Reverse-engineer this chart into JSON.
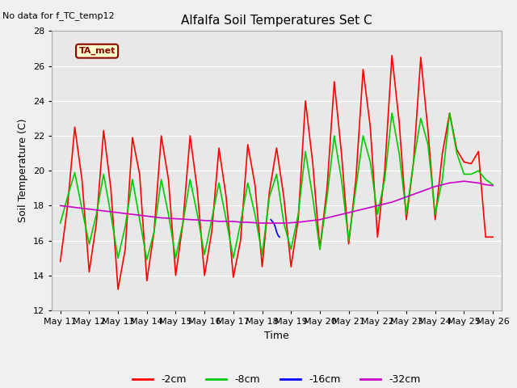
{
  "title": "Alfalfa Soil Temperatures Set C",
  "xlabel": "Time",
  "ylabel": "Soil Temperature (C)",
  "no_data_text": "No data for f_TC_temp12",
  "ta_met_label": "TA_met",
  "ylim": [
    12,
    28
  ],
  "yticks": [
    12,
    14,
    16,
    18,
    20,
    22,
    24,
    26,
    28
  ],
  "background_color": "#e8e8e8",
  "grid_color": "#ffffff",
  "series": {
    "neg2cm": {
      "label": "-2cm",
      "color": "#ff0000",
      "linewidth": 1.2
    },
    "neg8cm": {
      "label": "-8cm",
      "color": "#00cc00",
      "linewidth": 1.2
    },
    "neg16cm": {
      "label": "-16cm",
      "color": "#0000ff",
      "linewidth": 1.2
    },
    "neg32cm": {
      "label": "-32cm",
      "color": "#cc00cc",
      "linewidth": 1.2
    }
  },
  "x_tick_labels": [
    "May 11",
    "May 12",
    "May 13",
    "May 14",
    "May 15",
    "May 16",
    "May 17",
    "May 18",
    "May 19",
    "May 20",
    "May 21",
    "May 22",
    "May 23",
    "May 24",
    "May 25",
    "May 26"
  ],
  "x_tick_positions": [
    0,
    1,
    2,
    3,
    4,
    5,
    6,
    7,
    8,
    9,
    10,
    11,
    12,
    13,
    14,
    15
  ],
  "neg2cm_x": [
    0.0,
    0.25,
    0.5,
    0.75,
    1.0,
    1.25,
    1.5,
    1.75,
    2.0,
    2.25,
    2.5,
    2.75,
    3.0,
    3.25,
    3.5,
    3.75,
    4.0,
    4.25,
    4.5,
    4.75,
    5.0,
    5.25,
    5.5,
    5.75,
    6.0,
    6.25,
    6.5,
    6.75,
    7.0,
    7.25,
    7.5,
    7.75,
    8.0,
    8.25,
    8.5,
    8.75,
    9.0,
    9.25,
    9.5,
    9.75,
    10.0,
    10.25,
    10.5,
    10.75,
    11.0,
    11.25,
    11.5,
    11.75,
    12.0,
    12.25,
    12.5,
    12.75,
    13.0,
    13.25,
    13.5,
    13.75,
    14.0,
    14.25,
    14.5,
    14.75,
    15.0
  ],
  "neg2cm_y": [
    14.8,
    18.0,
    22.5,
    19.5,
    14.2,
    17.0,
    22.3,
    19.0,
    13.2,
    15.5,
    21.9,
    19.8,
    13.7,
    16.5,
    22.0,
    19.5,
    14.0,
    17.0,
    22.0,
    18.9,
    14.0,
    16.5,
    21.3,
    18.5,
    13.9,
    16.0,
    21.5,
    19.2,
    14.5,
    18.8,
    21.3,
    18.5,
    14.5,
    17.2,
    24.0,
    20.5,
    15.5,
    19.0,
    25.1,
    21.0,
    15.8,
    19.5,
    25.8,
    22.5,
    16.2,
    20.0,
    26.6,
    22.8,
    17.2,
    20.5,
    26.5,
    22.3,
    17.2,
    21.0,
    23.3,
    21.2,
    20.5,
    20.4,
    21.1,
    16.2,
    16.2
  ],
  "neg8cm_x": [
    0.0,
    0.25,
    0.5,
    0.75,
    1.0,
    1.25,
    1.5,
    1.75,
    2.0,
    2.25,
    2.5,
    2.75,
    3.0,
    3.25,
    3.5,
    3.75,
    4.0,
    4.25,
    4.5,
    4.75,
    5.0,
    5.25,
    5.5,
    5.75,
    6.0,
    6.25,
    6.5,
    6.75,
    7.0,
    7.25,
    7.5,
    7.75,
    8.0,
    8.25,
    8.5,
    8.75,
    9.0,
    9.25,
    9.5,
    9.75,
    10.0,
    10.25,
    10.5,
    10.75,
    11.0,
    11.25,
    11.5,
    11.75,
    12.0,
    12.25,
    12.5,
    12.75,
    13.0,
    13.25,
    13.5,
    13.75,
    14.0,
    14.25,
    14.5,
    14.75,
    15.0
  ],
  "neg8cm_y": [
    17.0,
    18.5,
    19.9,
    17.8,
    15.8,
    17.5,
    19.8,
    17.5,
    15.0,
    16.8,
    19.5,
    17.2,
    14.9,
    16.5,
    19.5,
    17.5,
    15.0,
    17.0,
    19.5,
    17.5,
    15.2,
    17.2,
    19.3,
    17.2,
    15.0,
    17.0,
    19.3,
    17.5,
    15.2,
    18.5,
    19.8,
    17.0,
    15.5,
    17.5,
    21.1,
    18.5,
    15.5,
    18.5,
    22.0,
    19.5,
    16.0,
    19.0,
    22.0,
    20.5,
    17.5,
    19.5,
    23.3,
    21.0,
    17.5,
    20.5,
    23.0,
    21.5,
    17.5,
    19.5,
    23.3,
    21.0,
    19.8,
    19.8,
    20.0,
    19.5,
    19.2
  ],
  "neg16cm_x": [
    7.3,
    7.35,
    7.4,
    7.45,
    7.5,
    7.55,
    7.6
  ],
  "neg16cm_y": [
    17.2,
    17.1,
    17.0,
    16.8,
    16.5,
    16.3,
    16.2
  ],
  "neg32cm_x": [
    0.0,
    0.25,
    0.5,
    0.75,
    1.0,
    1.25,
    1.5,
    1.75,
    2.0,
    2.25,
    2.5,
    2.75,
    3.0,
    3.25,
    3.5,
    3.75,
    4.0,
    4.25,
    4.5,
    4.75,
    5.0,
    5.25,
    5.5,
    5.75,
    6.0,
    6.25,
    6.5,
    6.75,
    7.0,
    7.25,
    7.5,
    7.75,
    8.0,
    8.25,
    8.5,
    8.75,
    9.0,
    9.25,
    9.5,
    9.75,
    10.0,
    10.25,
    10.5,
    10.75,
    11.0,
    11.25,
    11.5,
    11.75,
    12.0,
    12.25,
    12.5,
    12.75,
    13.0,
    13.25,
    13.5,
    13.75,
    14.0,
    14.25,
    14.5,
    14.75,
    15.0
  ],
  "neg32cm_y": [
    18.0,
    17.95,
    17.9,
    17.85,
    17.8,
    17.75,
    17.7,
    17.65,
    17.6,
    17.55,
    17.5,
    17.45,
    17.4,
    17.35,
    17.3,
    17.28,
    17.25,
    17.23,
    17.2,
    17.18,
    17.15,
    17.13,
    17.1,
    17.1,
    17.1,
    17.05,
    17.05,
    17.02,
    17.0,
    17.0,
    17.0,
    17.0,
    17.02,
    17.05,
    17.1,
    17.15,
    17.2,
    17.3,
    17.4,
    17.5,
    17.6,
    17.7,
    17.8,
    17.9,
    18.0,
    18.1,
    18.2,
    18.35,
    18.5,
    18.65,
    18.8,
    18.95,
    19.1,
    19.2,
    19.3,
    19.35,
    19.4,
    19.35,
    19.3,
    19.2,
    19.15
  ]
}
